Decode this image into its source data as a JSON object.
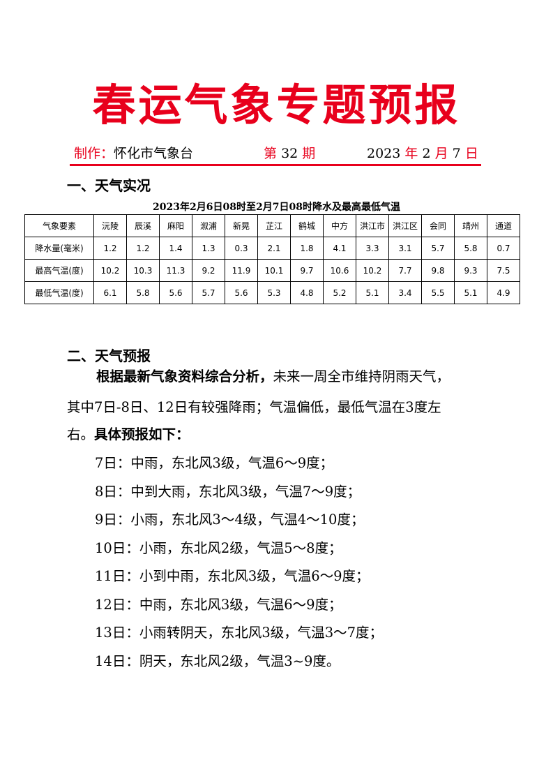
{
  "title": "春运气象专题预报",
  "header": {
    "maker_label": "制作：",
    "maker": "怀化市气象台",
    "issue_pre": "第",
    "issue_num": "32",
    "issue_post": "期",
    "year": "2023",
    "y": "年",
    "month": "2",
    "m": "月",
    "day": "7",
    "d": "日"
  },
  "section1": {
    "heading": "一、天气实况",
    "caption": "2023年2月6日08时至2月7日08时降水及最高最低气温",
    "columns": [
      "气象要素",
      "沅陵",
      "辰溪",
      "麻阳",
      "溆浦",
      "新晃",
      "芷江",
      "鹤城",
      "中方",
      "洪江市",
      "洪江区",
      "会同",
      "靖州",
      "通道"
    ],
    "rows": [
      [
        "降水量(毫米)",
        "1.2",
        "1.2",
        "1.4",
        "1.3",
        "0.3",
        "2.1",
        "1.8",
        "4.1",
        "3.3",
        "3.1",
        "5.7",
        "5.8",
        "0.7"
      ],
      [
        "最高气温(度)",
        "10.2",
        "10.3",
        "11.3",
        "9.2",
        "11.9",
        "10.1",
        "9.7",
        "10.6",
        "10.2",
        "7.7",
        "9.8",
        "9.3",
        "7.5"
      ],
      [
        "最低气温(度)",
        "6.1",
        "5.8",
        "5.6",
        "5.7",
        "5.6",
        "5.3",
        "4.8",
        "5.2",
        "5.1",
        "3.4",
        "5.5",
        "5.1",
        "4.9"
      ]
    ]
  },
  "section2": {
    "heading": "二、天气预报",
    "summary_bold": "根据最新气象资料综合分析，",
    "summary_line1": "未来一周全市维持阴雨天气，",
    "summary_line2": "其中7日-8日、12日有较强降雨；气温偏低，最低气温在3度左",
    "summary_line3": "右。",
    "summary_bold2": "具体预报如下：",
    "days": [
      "7日：中雨，东北风3级，气温6～9度；",
      "8日：中到大雨，东北风3级，气温7～9度；",
      "9日：小雨，东北风3～4级，气温4～10度；",
      "10日：小雨，东北风2级，气温5～8度；",
      "11日：小到中雨，东北风3级，气温6～9度；",
      "12日：中雨，东北风3级，气温6～9度；",
      "13日：小雨转阴天，东北风3级，气温3～7度；",
      "14日：阴天，东北风2级，气温3~9度。"
    ]
  }
}
